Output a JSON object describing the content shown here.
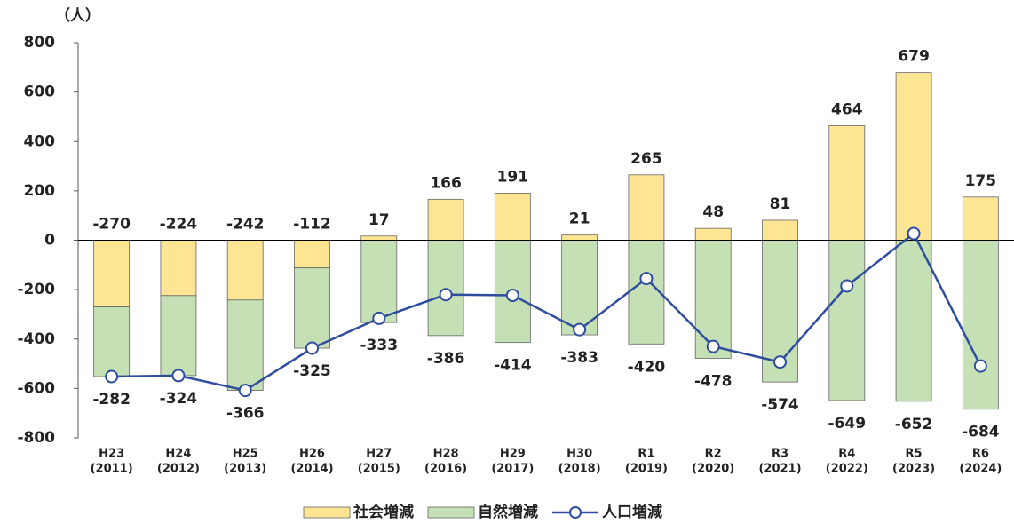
{
  "chart_data": {
    "type": "bar",
    "y_unit": "（人）",
    "categories": [
      "H23",
      "H24",
      "H25",
      "H26",
      "H27",
      "H28",
      "H29",
      "H30",
      "R1",
      "R2",
      "R3",
      "R4",
      "R5",
      "R6"
    ],
    "category_years": [
      "(2011)",
      "(2012)",
      "(2013)",
      "(2014)",
      "(2015)",
      "(2016)",
      "(2017)",
      "(2018)",
      "(2019)",
      "(2020)",
      "(2021)",
      "(2022)",
      "(2023)",
      "(2024)"
    ],
    "series": [
      {
        "name": "社会増減",
        "type": "bar",
        "color": "#fde594",
        "values": [
          -270,
          -224,
          -242,
          -112,
          17,
          166,
          191,
          21,
          265,
          48,
          81,
          464,
          679,
          175
        ]
      },
      {
        "name": "自然増減",
        "type": "bar",
        "color": "#c5e0b4",
        "values": [
          -282,
          -324,
          -366,
          -325,
          -333,
          -386,
          -414,
          -383,
          -420,
          -478,
          -574,
          -649,
          -652,
          -684
        ]
      },
      {
        "name": "人口増減",
        "type": "line",
        "color": "#2f4d9e",
        "values": [
          -552,
          -548,
          -608,
          -437,
          -316,
          -220,
          -223,
          -362,
          -155,
          -430,
          -493,
          -185,
          27,
          -509
        ]
      }
    ],
    "ylim": [
      -800,
      800
    ],
    "yticks": [
      -800,
      -600,
      -400,
      -200,
      0,
      200,
      400,
      600,
      800
    ]
  }
}
